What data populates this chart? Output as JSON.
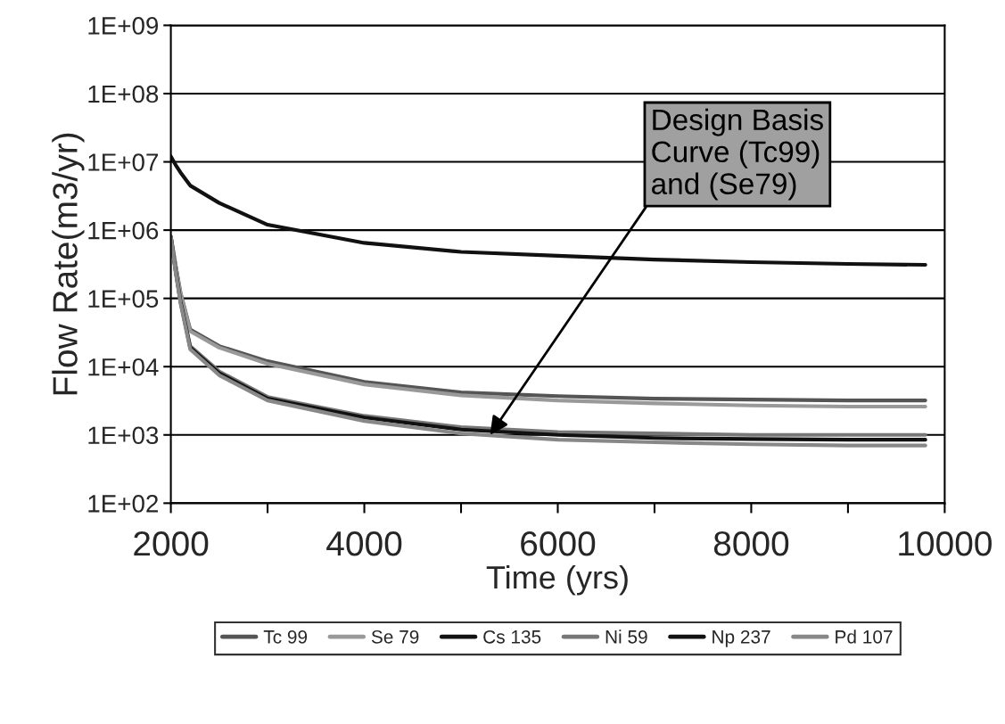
{
  "chart_data": {
    "type": "line",
    "xlabel": "Time (yrs)",
    "ylabel": "Flow Rate(m3/yr)",
    "x": [
      2000,
      2050,
      2100,
      2200,
      2500,
      3000,
      4000,
      5000,
      6000,
      7000,
      8000,
      9000,
      9800
    ],
    "series": [
      {
        "name": "Tc 99",
        "color": "#555555",
        "values": [
          800000,
          300000,
          120000,
          35000,
          20000,
          12000,
          6000,
          4200,
          3700,
          3400,
          3300,
          3200,
          3200
        ]
      },
      {
        "name": "Se 79",
        "color": "#999999",
        "values": [
          800000,
          300000,
          120000,
          33000,
          19000,
          11000,
          5500,
          3800,
          3200,
          2900,
          2700,
          2600,
          2600
        ]
      },
      {
        "name": "Cs 135",
        "color": "#111111",
        "values": [
          12000000,
          9000000,
          7000000,
          4500000,
          2500000,
          1200000,
          650000,
          480000,
          420000,
          370000,
          340000,
          320000,
          310000
        ]
      },
      {
        "name": "Ni 59",
        "color": "#777777",
        "values": [
          800000,
          250000,
          90000,
          20000,
          8500,
          3600,
          1900,
          1300,
          1100,
          1050,
          1000,
          1000,
          1000
        ]
      },
      {
        "name": "Np 237",
        "color": "#111111",
        "values": [
          800000,
          250000,
          90000,
          19000,
          8000,
          3400,
          1800,
          1200,
          1000,
          900,
          870,
          850,
          850
        ]
      },
      {
        "name": "Pd 107",
        "color": "#888888",
        "values": [
          800000,
          240000,
          85000,
          18000,
          7500,
          3200,
          1600,
          1050,
          850,
          780,
          730,
          700,
          700
        ]
      }
    ],
    "log": "y",
    "xlim": [
      2000,
      10000
    ],
    "xticks": [
      2000,
      {
        "value": 3000,
        "label": null
      },
      4000,
      {
        "value": 5000,
        "label": null
      },
      6000,
      {
        "value": 7000,
        "label": null
      },
      8000,
      {
        "value": 9000,
        "label": null
      },
      10000
    ],
    "ylim": [
      100,
      1000000000
    ],
    "yticks": [
      {
        "value": 100,
        "label": "1E+02"
      },
      {
        "value": 1000,
        "label": "1E+03"
      },
      {
        "value": 10000,
        "label": "1E+04"
      },
      {
        "value": 100000,
        "label": "1E+05"
      },
      {
        "value": 1000000,
        "label": "1E+06"
      },
      {
        "value": 10000000,
        "label": "1E+07"
      },
      {
        "value": 100000000,
        "label": "1E+08"
      },
      {
        "value": 1000000000,
        "label": "1E+09"
      }
    ],
    "grid": "y",
    "legend": "bottom",
    "marker": "none",
    "line_style": "solid",
    "annotations": [
      {
        "text": "Design Basis\nCurve (Tc99)\nand (Se79)",
        "x": 5300,
        "y": 1000
      }
    ]
  }
}
